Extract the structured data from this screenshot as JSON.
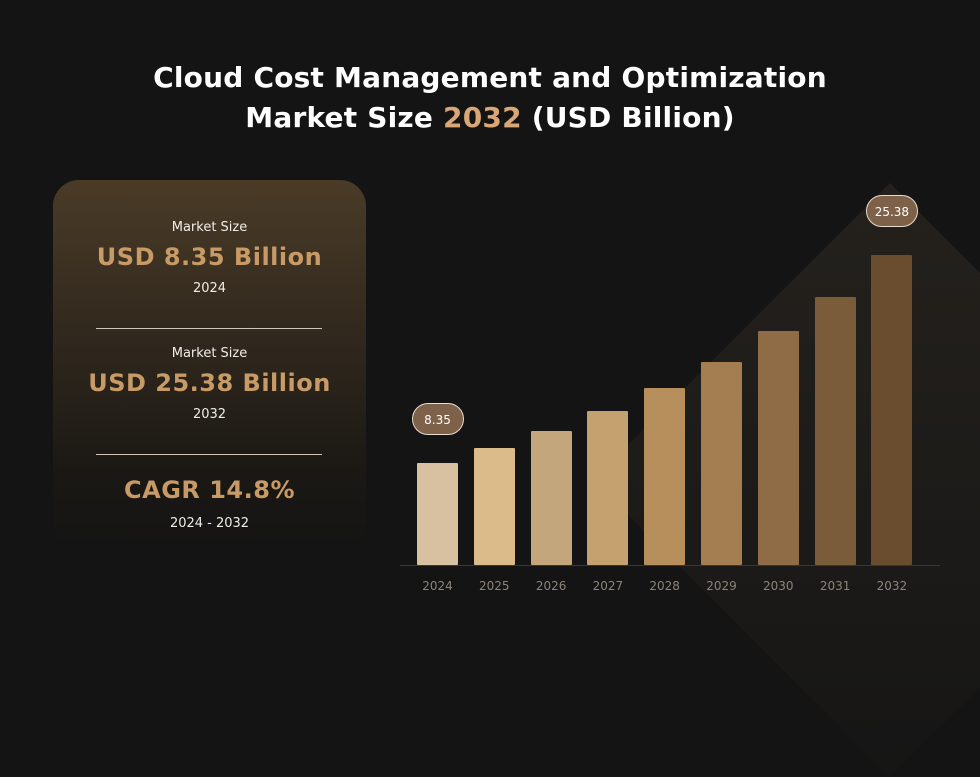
{
  "title": {
    "line1": "Cloud Cost Management and Optimization",
    "line2_prefix": "Market Size ",
    "line2_accent": "2032",
    "line2_suffix": " (USD Billion)"
  },
  "info_card": {
    "block1": {
      "label": "Market Size",
      "value": "USD 8.35 Billion",
      "year": "2024"
    },
    "block2": {
      "label": "Market Size",
      "value": "USD 25.38 Billion",
      "year": "2032"
    },
    "block3": {
      "value": "CAGR 14.8%",
      "period": "2024 - 2032"
    }
  },
  "colors": {
    "accent": "#d9a676",
    "bars": [
      "#d8c1a0",
      "#dcbb8a",
      "#c4a67c",
      "#c5a170",
      "#b68f5c",
      "#a47e51",
      "#8f6c45",
      "#7a5c3b",
      "#6a4d2e"
    ]
  },
  "chart_data": {
    "type": "bar",
    "categories": [
      "2024",
      "2025",
      "2026",
      "2027",
      "2028",
      "2029",
      "2030",
      "2031",
      "2032"
    ],
    "values": [
      8.35,
      9.59,
      11.01,
      12.64,
      14.51,
      16.66,
      19.12,
      21.94,
      25.38
    ],
    "ylim": [
      0,
      25.38
    ],
    "callouts": [
      {
        "index": 0,
        "label": "8.35"
      },
      {
        "index": 8,
        "label": "25.38"
      }
    ]
  }
}
